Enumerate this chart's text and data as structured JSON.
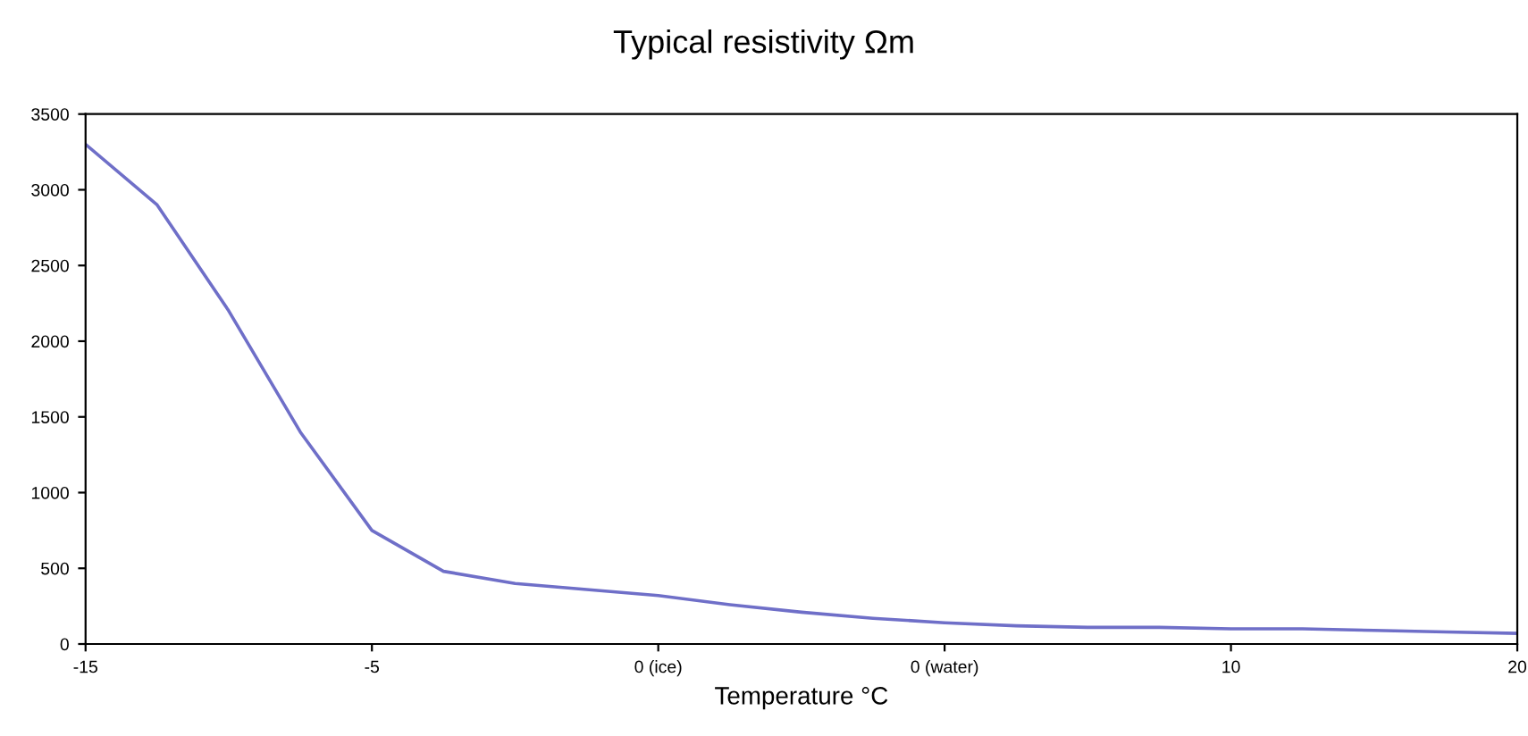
{
  "chart_data": {
    "type": "line",
    "title": "Typical resistivity Ωm",
    "xlabel": "Temperature °C",
    "categories": [
      "-15",
      null,
      null,
      null,
      "-5",
      null,
      null,
      null,
      "0 (ice)",
      null,
      null,
      null,
      "0 (water)",
      null,
      null,
      null,
      "10",
      null,
      null,
      null,
      "20"
    ],
    "series": [
      {
        "color": "#6f6fc8",
        "values": [
          3300,
          2900,
          2200,
          1400,
          750,
          480,
          400,
          360,
          320,
          260,
          210,
          170,
          140,
          120,
          110,
          110,
          100,
          100,
          90,
          80,
          70
        ]
      }
    ],
    "ylim": [
      0,
      3500
    ],
    "yticks": [
      0,
      500,
      1000,
      1500,
      2000,
      2500,
      3000,
      3500
    ],
    "grid": false,
    "legend": false,
    "marker": "none",
    "line_style": "solid"
  }
}
